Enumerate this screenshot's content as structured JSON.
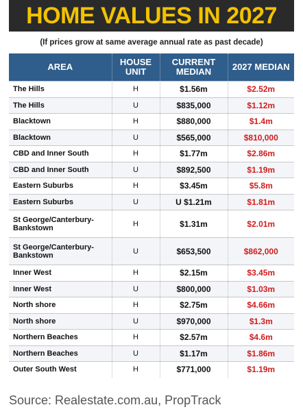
{
  "title": "HOME VALUES IN 2027",
  "subtitle": "(If prices grow at same average annual rate as past decade)",
  "headers": {
    "area": "AREA",
    "unit": "HOUSE UNIT",
    "current": "CURRENT MEDIAN",
    "projected": "2027 MEDIAN"
  },
  "rows": [
    {
      "area": "The Hills",
      "unit": "H",
      "current": "$1.56m",
      "projected": "$2.52m"
    },
    {
      "area": "The Hills",
      "unit": "U",
      "current": "$835,000",
      "projected": "$1.12m"
    },
    {
      "area": "Blacktown",
      "unit": "H",
      "current": "$880,000",
      "projected": "$1.4m"
    },
    {
      "area": "Blacktown",
      "unit": "U",
      "current": "$565,000",
      "projected": "$810,000"
    },
    {
      "area": "CBD and Inner South",
      "unit": "H",
      "current": "$1.77m",
      "projected": "$2.86m"
    },
    {
      "area": "CBD and Inner South",
      "unit": "U",
      "current": "$892,500",
      "projected": "$1.19m"
    },
    {
      "area": "Eastern Suburbs",
      "unit": "H",
      "current": "$3.45m",
      "projected": "$5.8m"
    },
    {
      "area": "Eastern Suburbs",
      "unit": "U",
      "current": "U $1.21m",
      "projected": "$1.81m"
    },
    {
      "area": "St George/Canterbury-Bankstown",
      "unit": "H",
      "current": "$1.31m",
      "projected": "$2.01m"
    },
    {
      "area": "St George/Canterbury-Bankstown",
      "unit": "U",
      "current": "$653,500",
      "projected": "$862,000"
    },
    {
      "area": "Inner West",
      "unit": "H",
      "current": "$2.15m",
      "projected": "$3.45m"
    },
    {
      "area": "Inner West",
      "unit": "U",
      "current": "$800,000",
      "projected": "$1.03m"
    },
    {
      "area": "North shore",
      "unit": "H",
      "current": "$2.75m",
      "projected": "$4.66m"
    },
    {
      "area": "North shore",
      "unit": "U",
      "current": "$970,000",
      "projected": "$1.3m"
    },
    {
      "area": "Northern Beaches",
      "unit": "H",
      "current": "$2.57m",
      "projected": "$4.6m"
    },
    {
      "area": "Northern Beaches",
      "unit": "U",
      "current": "$1.17m",
      "projected": "$1.86m"
    },
    {
      "area": "Outer South West",
      "unit": "H",
      "current": "$771,000",
      "projected": "$1.19m"
    }
  ],
  "source": "Source: Realestate.com.au, PropTrack",
  "colors": {
    "title_bg": "#2a2a2a",
    "title_text": "#f2c200",
    "header_bg": "#2f5d8c",
    "projected_text": "#d11d1d"
  }
}
